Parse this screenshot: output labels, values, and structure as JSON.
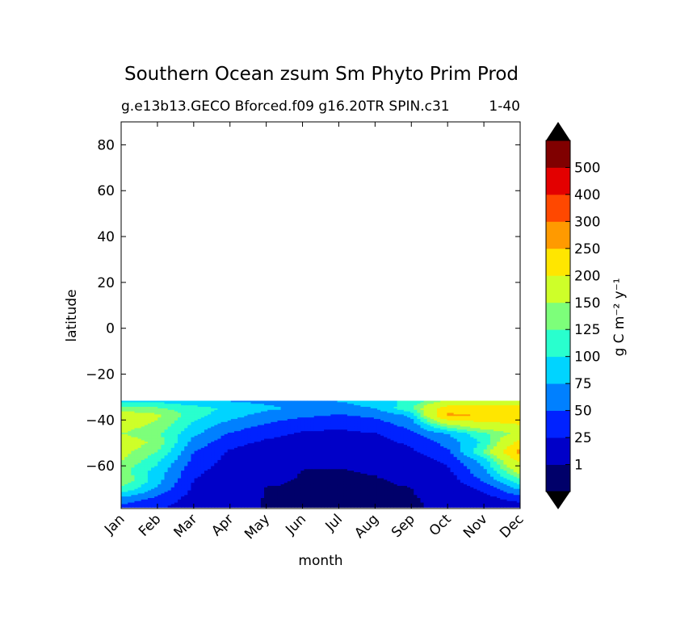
{
  "chart_data": {
    "type": "heatmap",
    "title": "Southern Ocean zsum Sm Phyto Prim Prod",
    "subtitle_left": "g.e13b13.GECO Bforced.f09 g16.20TR SPIN.c31",
    "subtitle_right": "1-40",
    "xlabel": "month",
    "ylabel": "latitude",
    "x_categories": [
      "Jan",
      "Feb",
      "Mar",
      "Apr",
      "May",
      "Jun",
      "Jul",
      "Aug",
      "Sep",
      "Oct",
      "Nov",
      "Dec"
    ],
    "y_ticks": [
      {
        "value": 80,
        "label": "80"
      },
      {
        "value": 60,
        "label": "60"
      },
      {
        "value": 40,
        "label": "40"
      },
      {
        "value": 20,
        "label": "20"
      },
      {
        "value": 0,
        "label": "0"
      },
      {
        "value": -20,
        "label": "−20"
      },
      {
        "value": -40,
        "label": "−40"
      },
      {
        "value": -60,
        "label": "−60"
      }
    ],
    "ylim": [
      -78.6,
      90
    ],
    "data_lat_range": [
      -78,
      -31.6
    ],
    "colorbar": {
      "label": "g C m⁻² y⁻¹",
      "levels": [
        0,
        1,
        25,
        50,
        75,
        100,
        125,
        150,
        200,
        250,
        300,
        400,
        500,
        600
      ],
      "tick_labels": [
        "1",
        "25",
        "50",
        "75",
        "100",
        "125",
        "150",
        "200",
        "250",
        "300",
        "400",
        "500"
      ],
      "colors": [
        "#00006a",
        "#0000c8",
        "#0022ff",
        "#0080ff",
        "#00d4ff",
        "#29ffce",
        "#7dff7a",
        "#ceff29",
        "#ffe600",
        "#ff9a00",
        "#ff4800",
        "#e30000",
        "#800000"
      ],
      "extend_low_color": "#000000",
      "extend_high_color": "#000000"
    },
    "profiles": {
      "lat": [
        -32,
        -35,
        -38,
        -42,
        -46,
        -50,
        -54,
        -58,
        -62,
        -66,
        -70,
        -74,
        -77.5
      ],
      "values": {
        "Jan": [
          95,
          135,
          170,
          165,
          150,
          175,
          160,
          150,
          135,
          150,
          120,
          70,
          45
        ],
        "Feb": [
          95,
          130,
          155,
          145,
          130,
          140,
          125,
          105,
          90,
          85,
          70,
          45,
          30
        ],
        "Mar": [
          85,
          110,
          110,
          95,
          80,
          65,
          50,
          42,
          32,
          25,
          20,
          15,
          12
        ],
        "Apr": [
          75,
          95,
          85,
          65,
          48,
          32,
          22,
          16,
          12,
          10,
          8,
          6,
          5
        ],
        "May": [
          70,
          80,
          65,
          48,
          32,
          20,
          14,
          10,
          6,
          2.5,
          0.6,
          0.4,
          0.4
        ],
        "Jun": [
          70,
          70,
          55,
          35,
          22,
          14,
          8,
          4,
          0.8,
          0.4,
          0.3,
          0.3,
          0.05
        ],
        "Jul": [
          75,
          65,
          48,
          30,
          20,
          12,
          6,
          3,
          0.7,
          0.4,
          0.3,
          0.2,
          0.05
        ],
        "Aug": [
          85,
          75,
          55,
          38,
          24,
          14,
          8,
          4,
          1.5,
          0.6,
          0.4,
          0.3,
          0.3
        ],
        "Sep": [
          110,
          120,
          80,
          60,
          45,
          30,
          20,
          10,
          5,
          2,
          0.8,
          0.5,
          0.4
        ],
        "Oct": [
          160,
          230,
          260,
          150,
          75,
          58,
          45,
          30,
          20,
          12,
          6,
          3,
          2
        ],
        "Nov": [
          170,
          220,
          245,
          180,
          120,
          105,
          125,
          85,
          70,
          55,
          32,
          14,
          6
        ],
        "Dec": [
          175,
          215,
          240,
          200,
          160,
          220,
          270,
          210,
          170,
          120,
          80,
          40,
          12
        ]
      }
    }
  }
}
